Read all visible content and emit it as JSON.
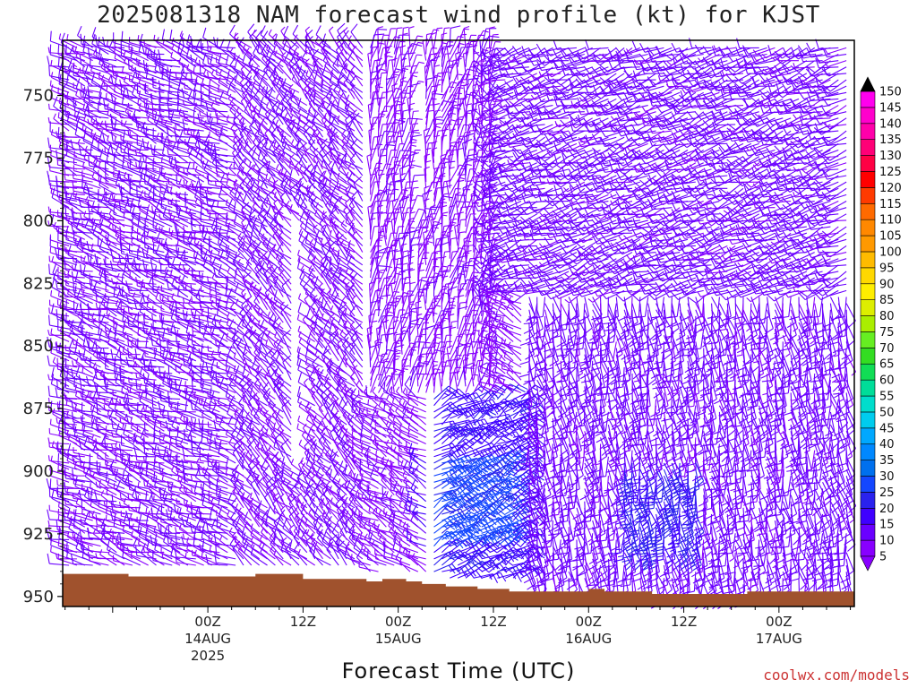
{
  "title": "2025081318 NAM forecast wind profile (kt) for KJST",
  "x_axis_title": "Forecast Time (UTC)",
  "credit": "coolwx.com/models",
  "chart_data": {
    "type": "wind_barb_time_height",
    "title": "2025081318 NAM forecast wind profile (kt) for KJST",
    "xlabel": "Forecast Time (UTC)",
    "ylabel": "",
    "y_ticks": [
      750,
      775,
      800,
      825,
      850,
      875,
      900,
      925,
      950
    ],
    "ylim_hpa": [
      728,
      954
    ],
    "xlim_hours": [
      -18.3,
      81.5
    ],
    "x_ticks": [
      {
        "hour": 0,
        "line1": "00Z",
        "line2": "14AUG",
        "line3": "2025"
      },
      {
        "hour": 12,
        "line1": "12Z",
        "line2": "",
        "line3": ""
      },
      {
        "hour": 24,
        "line1": "00Z",
        "line2": "15AUG",
        "line3": ""
      },
      {
        "hour": 36,
        "line1": "12Z",
        "line2": "",
        "line3": ""
      },
      {
        "hour": 48,
        "line1": "00Z",
        "line2": "16AUG",
        "line3": ""
      },
      {
        "hour": 60,
        "line1": "12Z",
        "line2": "",
        "line3": ""
      },
      {
        "hour": 72,
        "line1": "00Z",
        "line2": "17AUG",
        "line3": ""
      }
    ],
    "colorbar": {
      "units": "kt",
      "ticks": [
        5,
        10,
        15,
        20,
        25,
        30,
        35,
        40,
        45,
        50,
        55,
        60,
        65,
        70,
        75,
        80,
        85,
        90,
        95,
        100,
        105,
        110,
        115,
        120,
        125,
        130,
        135,
        140,
        145,
        150
      ],
      "colors": [
        "#8800ff",
        "#6a00ff",
        "#3f00ff",
        "#2a22ee",
        "#1447ff",
        "#0070ee",
        "#0088ff",
        "#00a8ff",
        "#00ccee",
        "#00ddcc",
        "#00dd99",
        "#11dd55",
        "#33dd22",
        "#66ee22",
        "#aaee00",
        "#ddee00",
        "#ffee00",
        "#ffd800",
        "#ffbb00",
        "#ff9900",
        "#ff8800",
        "#ff6a00",
        "#ff3a00",
        "#ff0000",
        "#ff0044",
        "#ff0077",
        "#ff00aa",
        "#ff00cc",
        "#ff00ee",
        "#000000"
      ]
    },
    "terrain_color": "#a0522d",
    "terrain_pressure_hpa": [
      {
        "hour": -18,
        "p": 941
      },
      {
        "hour": -13,
        "p": 941
      },
      {
        "hour": -10,
        "p": 942
      },
      {
        "hour": -2,
        "p": 942
      },
      {
        "hour": 2,
        "p": 942
      },
      {
        "hour": 6,
        "p": 941
      },
      {
        "hour": 10,
        "p": 941
      },
      {
        "hour": 12,
        "p": 943
      },
      {
        "hour": 16,
        "p": 943
      },
      {
        "hour": 18,
        "p": 943
      },
      {
        "hour": 20,
        "p": 944
      },
      {
        "hour": 22,
        "p": 943
      },
      {
        "hour": 25,
        "p": 944
      },
      {
        "hour": 27,
        "p": 945
      },
      {
        "hour": 30,
        "p": 946
      },
      {
        "hour": 34,
        "p": 947
      },
      {
        "hour": 38,
        "p": 948
      },
      {
        "hour": 42,
        "p": 948
      },
      {
        "hour": 46,
        "p": 948
      },
      {
        "hour": 48,
        "p": 947
      },
      {
        "hour": 50,
        "p": 948
      },
      {
        "hour": 56,
        "p": 949
      },
      {
        "hour": 62,
        "p": 949
      },
      {
        "hour": 68,
        "p": 948
      },
      {
        "hour": 72,
        "p": 948
      },
      {
        "hour": 76,
        "p": 948
      },
      {
        "hour": 81.5,
        "p": 948
      }
    ],
    "wind_barbs_note": "Barbs every 1 h at ~2-3 hPa spacing; mostly 5-15 kt (violet) with 15-25 kt (blue) pockets near 900-925 hPa",
    "wind_regimes": [
      {
        "from_hour": -18,
        "to_hour": 4,
        "pressure_from": 730,
        "pressure_to": 940,
        "dir_deg": 290,
        "speed_kt": 10
      },
      {
        "from_hour": 4,
        "to_hour": 20,
        "pressure_from": 730,
        "pressure_to": 940,
        "dir_deg": 315,
        "speed_kt": 10
      },
      {
        "from_hour": 20,
        "to_hour": 36,
        "pressure_from": 730,
        "pressure_to": 870,
        "dir_deg": 10,
        "speed_kt": 8
      },
      {
        "from_hour": 28,
        "to_hour": 40,
        "pressure_from": 870,
        "pressure_to": 945,
        "dir_deg": 60,
        "speed_kt": 18
      },
      {
        "from_hour": 36,
        "to_hour": 82,
        "pressure_from": 730,
        "pressure_to": 830,
        "dir_deg": 250,
        "speed_kt": 12
      },
      {
        "from_hour": 40,
        "to_hour": 82,
        "pressure_from": 830,
        "pressure_to": 950,
        "dir_deg": 170,
        "speed_kt": 12
      }
    ]
  }
}
